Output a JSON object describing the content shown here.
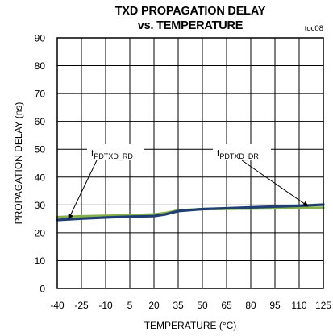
{
  "chart_data": {
    "type": "line",
    "title_line1": "TXD PROPAGATION DELAY",
    "title_line2": "vs. TEMPERATURE",
    "figure_id": "toc08",
    "xlabel": "TEMPERATURE (°C)",
    "ylabel": "PROPAGATION DELAY (ns)",
    "xlim": [
      -40,
      125
    ],
    "ylim": [
      0,
      90
    ],
    "xticks": [
      -40,
      -25,
      -10,
      5,
      20,
      35,
      50,
      65,
      80,
      95,
      110,
      125
    ],
    "yticks": [
      0,
      10,
      20,
      30,
      40,
      50,
      60,
      70,
      80,
      90
    ],
    "grid": true,
    "series": [
      {
        "name": "tPDTXD_RD",
        "label_main": "t",
        "label_sub": "PDTXD_RD",
        "color": "#86b04a",
        "x": [
          -40,
          -25,
          -10,
          5,
          20,
          27,
          35,
          50,
          65,
          80,
          95,
          110,
          125
        ],
        "y": [
          25.6,
          25.9,
          26.1,
          26.3,
          26.6,
          27.1,
          28.0,
          28.5,
          28.6,
          28.7,
          28.8,
          28.9,
          29.0
        ]
      },
      {
        "name": "tPDTXD_DR",
        "label_main": "t",
        "label_sub": "PDTXD_DR",
        "color": "#1f3f73",
        "x": [
          -40,
          -25,
          -10,
          5,
          20,
          27,
          35,
          50,
          65,
          80,
          95,
          110,
          125
        ],
        "y": [
          24.6,
          25.1,
          25.5,
          25.8,
          26.0,
          26.6,
          27.8,
          28.5,
          28.8,
          29.1,
          29.4,
          29.7,
          30.1
        ]
      }
    ]
  }
}
